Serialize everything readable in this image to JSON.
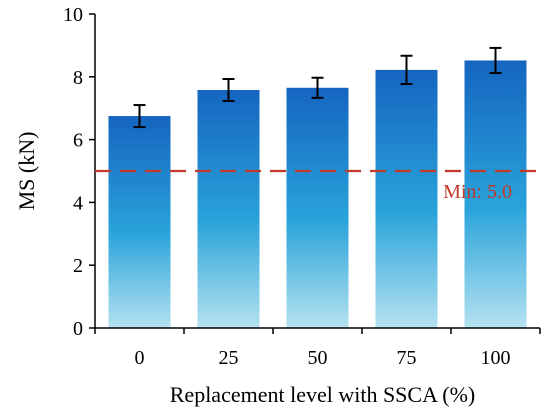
{
  "chart_data": {
    "type": "bar",
    "xlabel": "Replacement level with SSCA (%)",
    "ylabel": "MS (kN)",
    "categories": [
      "0",
      "25",
      "50",
      "75",
      "100"
    ],
    "series": [
      {
        "values": [
          6.75,
          7.58,
          7.65,
          8.22,
          8.52
        ],
        "errors": [
          0.35,
          0.35,
          0.32,
          0.45,
          0.4
        ]
      }
    ],
    "ylim": [
      0,
      10
    ],
    "yticks": [
      "0",
      "2",
      "4",
      "6",
      "8",
      "10"
    ],
    "reference_line": {
      "value": 5.0,
      "label": "Min: 5.0",
      "color": "#c0392b"
    },
    "bar_gradient": {
      "top": "#1565c0",
      "mid": "#29a3da",
      "bottom": "#b5e2f0"
    },
    "grid": false,
    "legend": "none"
  }
}
